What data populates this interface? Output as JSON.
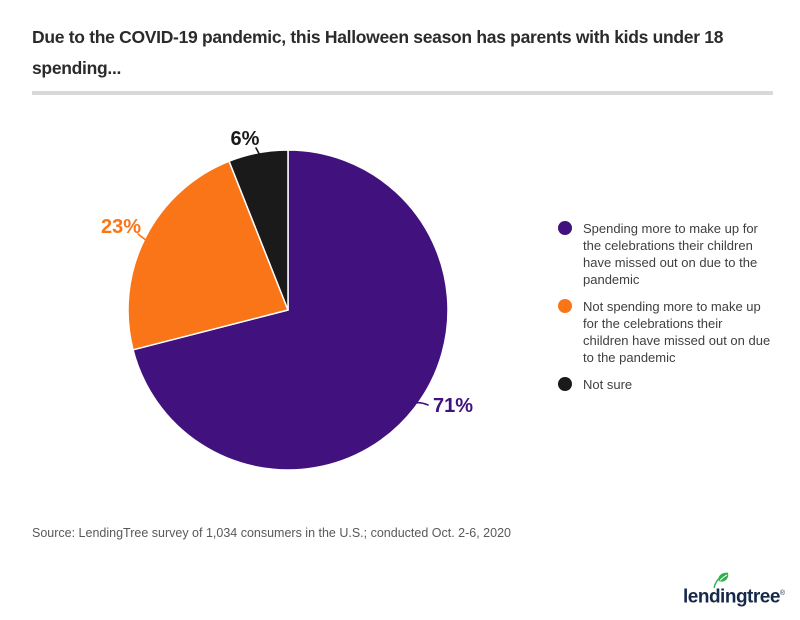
{
  "header": {
    "title": "Due to the COVID-19 pandemic, this Halloween season has parents with kids under 18\nspending..."
  },
  "chart_data": {
    "type": "pie",
    "title": "Due to the COVID-19 pandemic, this Halloween season has parents with kids under 18 spending...",
    "start_angle_deg": 0,
    "direction": "clockwise",
    "legend_position": "right",
    "slice_border_color": "#ffffff",
    "series": [
      {
        "label": "Spending more to make up for the celebrations their children have missed out on due to the pandemic",
        "value": 71,
        "color": "#41127e"
      },
      {
        "label": "Not spending more to make up for the celebrations their children have missed out on due to the pandemic",
        "value": 23,
        "color": "#fa7517"
      },
      {
        "label": "Not sure",
        "value": 6,
        "color": "#1a1a1a"
      }
    ]
  },
  "legend": {
    "items": [
      {
        "label": "Spending more to make up for\nthe celebrations their children\nhave missed out on due to the\npandemic",
        "color": "#41127e"
      },
      {
        "label": "Not spending more to make up\nfor the celebrations their\nchildren have missed out on due\nto the pandemic",
        "color": "#fa7517"
      },
      {
        "label": "Not sure",
        "color": "#1a1a1a"
      }
    ]
  },
  "footer": {
    "source": "Source: LendingTree survey of 1,034 consumers in the U.S.; conducted Oct. 2-6, 2020",
    "logo_text": "lendingtree",
    "logo_registered_mark": "®",
    "logo_wordmark_color": "#16294a",
    "logo_leaf_color": "#2db24b"
  }
}
